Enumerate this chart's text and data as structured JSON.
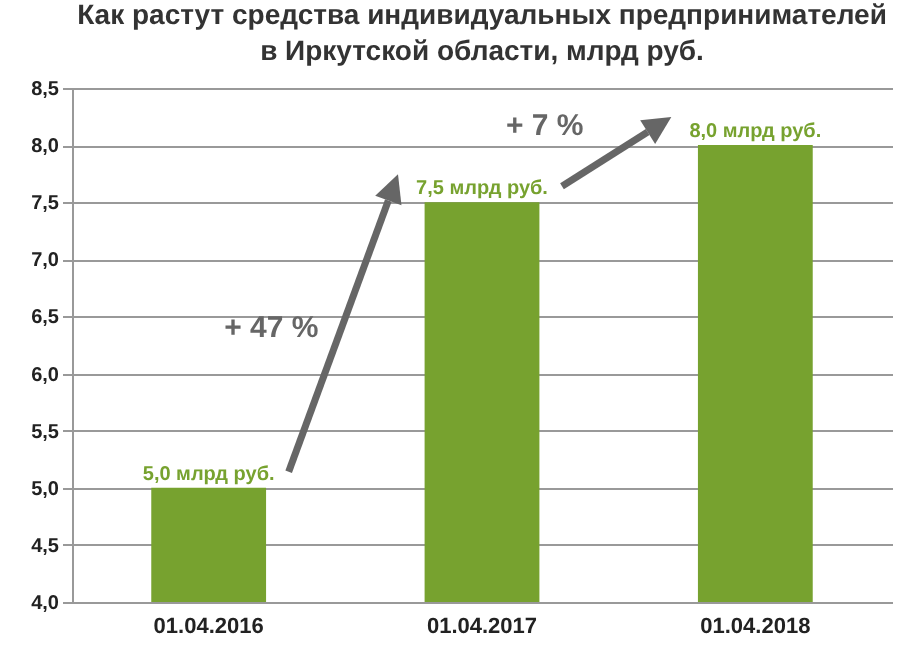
{
  "chart_data": {
    "type": "bar",
    "title": "Как растут средства индивидуальных предпринимателей\nв Иркутской области,  млрд руб.",
    "categories": [
      "01.04.2016",
      "01.04.2017",
      "01.04.2018"
    ],
    "values": [
      5.0,
      7.5,
      8.0
    ],
    "color": "#77a22f",
    "value_labels": [
      "5,0 млрд руб.",
      "7,5 млрд руб.",
      "8,0 млрд руб."
    ],
    "ylim": [
      4,
      8.5
    ],
    "yticks": [
      {
        "value": 4,
        "label": "4,0"
      },
      {
        "value": 4.5,
        "label": "4,5"
      },
      {
        "value": 5,
        "label": "5,0"
      },
      {
        "value": 5.5,
        "label": "5,5"
      },
      {
        "value": 6,
        "label": "6,0"
      },
      {
        "value": 6.5,
        "label": "6,5"
      },
      {
        "value": 7,
        "label": "7,0"
      },
      {
        "value": 7.5,
        "label": "7,5"
      },
      {
        "value": 8,
        "label": "8,0"
      },
      {
        "value": 8.5,
        "label": "8,5"
      }
    ],
    "annotations": [
      "+ 47 %",
      "+ 7 %"
    ],
    "grid": "y"
  }
}
